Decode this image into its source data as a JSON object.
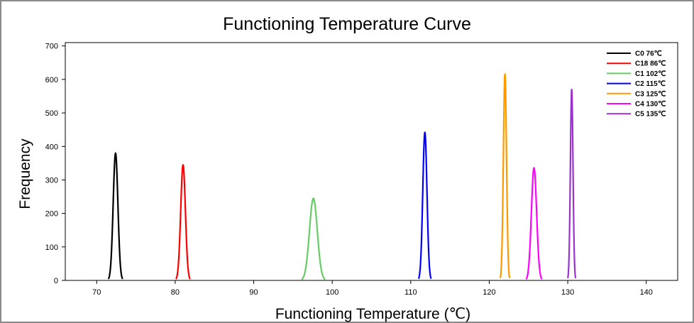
{
  "chart_data": {
    "type": "line",
    "title": "Functioning Temperature Curve",
    "xlabel": "Functioning Temperature (℃)",
    "ylabel": "Frequency",
    "xlim": [
      66,
      144
    ],
    "ylim": [
      0,
      710
    ],
    "xticks": [
      70,
      80,
      90,
      100,
      110,
      120,
      130,
      140
    ],
    "yticks": [
      0,
      100,
      200,
      300,
      400,
      500,
      600,
      700
    ],
    "grid": false,
    "legend_position": "top-right",
    "series": [
      {
        "name": "C0 76℃",
        "color": "#000000",
        "peak_x": 72.4,
        "peak_y": 380,
        "halfwidth": 0.9
      },
      {
        "name": "C18 86℃",
        "color": "#ff0000",
        "peak_x": 81.0,
        "peak_y": 345,
        "halfwidth": 0.9
      },
      {
        "name": "C1 102℃",
        "color": "#66cc66",
        "peak_x": 97.6,
        "peak_y": 245,
        "halfwidth": 1.5
      },
      {
        "name": "C2 115℃",
        "color": "#0000ff",
        "peak_x": 111.8,
        "peak_y": 442,
        "halfwidth": 0.8
      },
      {
        "name": "C3 125℃",
        "color": "#ff9900",
        "peak_x": 122.0,
        "peak_y": 616,
        "halfwidth": 0.6
      },
      {
        "name": "C4 130℃",
        "color": "#ff00ff",
        "peak_x": 125.7,
        "peak_y": 336,
        "halfwidth": 1.0
      },
      {
        "name": "C5 135℃",
        "color": "#9933cc",
        "peak_x": 130.5,
        "peak_y": 570,
        "halfwidth": 0.5
      }
    ]
  }
}
